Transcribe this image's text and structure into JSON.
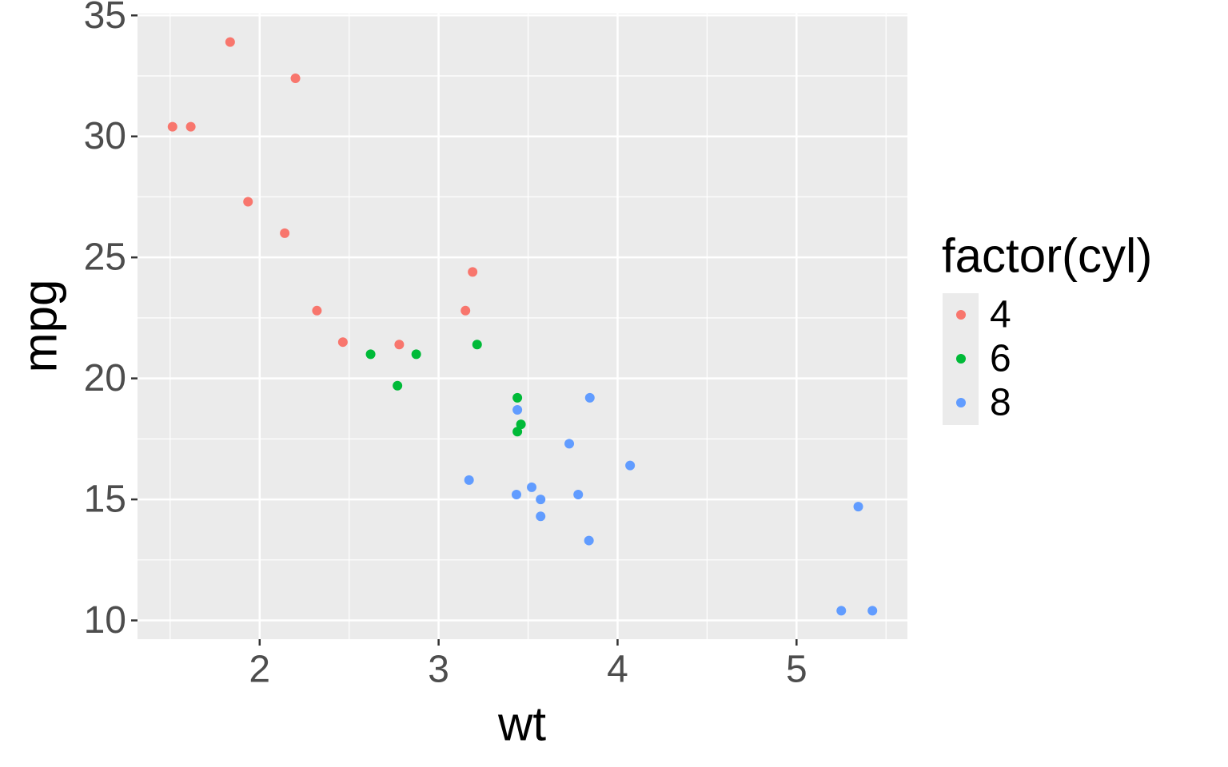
{
  "chart_data": {
    "type": "scatter",
    "x_label": "wt",
    "y_label": "mpg",
    "legend_title": "factor(cyl)",
    "xlim": [
      1.31745,
      5.61955
    ],
    "ylim": [
      9.225,
      35.075
    ],
    "xticks": [
      2,
      3,
      4,
      5
    ],
    "yticks": [
      10,
      15,
      20,
      25,
      30,
      35
    ],
    "x_minor_breaks": [
      1.5,
      2.5,
      3.5,
      4.5,
      5.5
    ],
    "y_minor_breaks": [
      12.5,
      17.5,
      22.5,
      27.5,
      32.5
    ],
    "grid": true,
    "legend_position": "right",
    "series": [
      {
        "name": "4",
        "color": "#F8766D",
        "x": [
          2.32,
          3.19,
          3.15,
          2.2,
          1.615,
          1.835,
          2.465,
          1.935,
          2.14,
          1.513,
          2.78
        ],
        "values": [
          22.8,
          24.4,
          22.8,
          32.4,
          30.4,
          33.9,
          21.5,
          27.3,
          26.0,
          30.4,
          21.4
        ]
      },
      {
        "name": "6",
        "color": "#00BA38",
        "x": [
          2.62,
          2.875,
          3.215,
          3.46,
          3.44,
          3.44,
          2.77
        ],
        "values": [
          21.0,
          21.0,
          21.4,
          18.1,
          19.2,
          17.8,
          19.7
        ]
      },
      {
        "name": "8",
        "color": "#619CFF",
        "x": [
          3.44,
          3.57,
          4.07,
          3.73,
          3.78,
          5.25,
          5.424,
          5.345,
          3.52,
          3.435,
          3.84,
          3.845,
          3.17,
          3.57
        ],
        "values": [
          18.7,
          14.3,
          16.4,
          17.3,
          15.2,
          10.4,
          10.4,
          14.7,
          15.5,
          15.2,
          13.3,
          19.2,
          15.8,
          15.0
        ]
      }
    ]
  }
}
